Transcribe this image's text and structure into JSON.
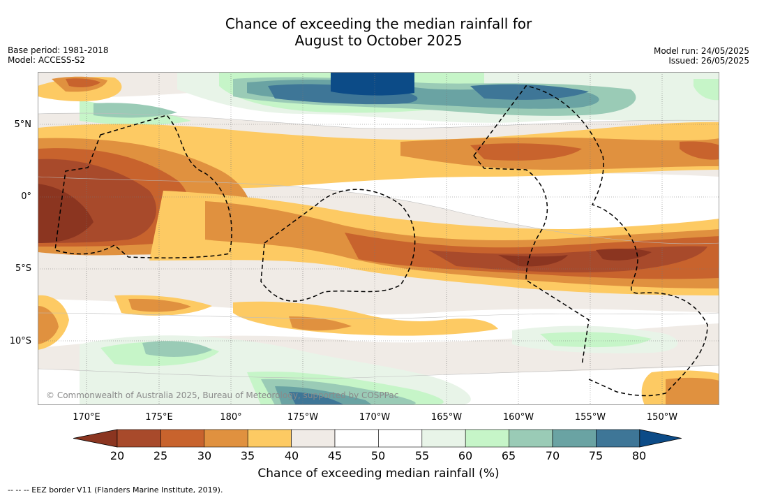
{
  "title_line1": "Chance of exceeding the median rainfall for",
  "title_line2": "August to October 2025",
  "base_period": "Base period: 1981-2018",
  "model": "Model: ACCESS-S2",
  "model_run": "Model run: 24/05/2025",
  "issued": "Issued: 26/05/2025",
  "copyright": "© Commonwealth of Australia 2025, Bureau of Meteorology, supported by COSPPac",
  "lat_labels": [
    "5°N",
    "0°",
    "5°S",
    "10°S"
  ],
  "lon_labels": [
    "170°E",
    "175°E",
    "180°",
    "175°W",
    "170°W",
    "165°W",
    "160°W",
    "155°W",
    "150°W"
  ],
  "colorbar": {
    "label": "Chance of exceeding median rainfall (%)",
    "ticks": [
      "20",
      "25",
      "30",
      "35",
      "40",
      "45",
      "50",
      "55",
      "60",
      "65",
      "70",
      "75",
      "80"
    ],
    "colors": [
      "#8b3520",
      "#a84a2b",
      "#c8632d",
      "#e0913f",
      "#fdca63",
      "#f0ebe6",
      "#ffffff",
      "#ffffff",
      "#e8f4e8",
      "#c6f5c8",
      "#9acbb6",
      "#6aa3a3",
      "#3e7697",
      "#0c4b87"
    ]
  },
  "legend_note": "--  --  -- EEZ border V11 (Flanders Marine Institute, 2019)."
}
